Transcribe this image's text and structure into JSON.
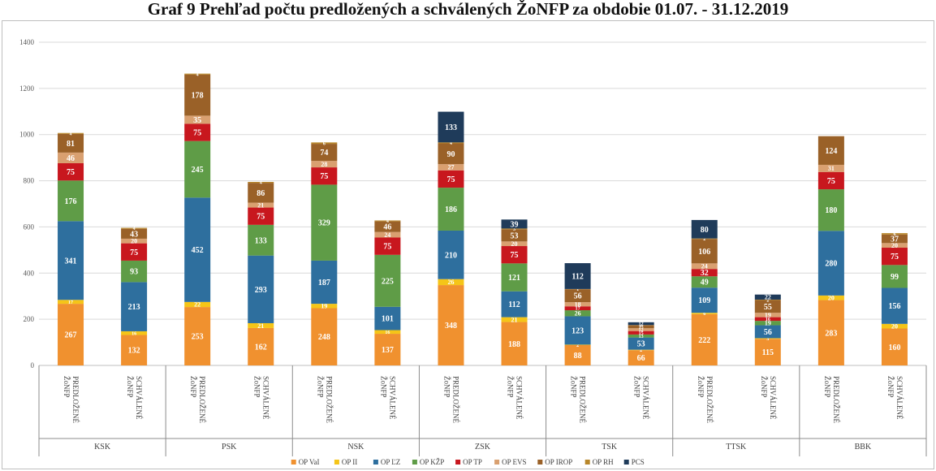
{
  "page": {
    "title": "Graf 9 Prehľad počtu predložených a schválených ŽoNFP za obdobie 01.07. - 31.12.2019"
  },
  "colors": {
    "OP VaI": "#f0912f",
    "OP II": "#f5c518",
    "OP ĽZ": "#2e6f9e",
    "OP KŽP": "#5f9c47",
    "OP TP": "#c8171e",
    "OP EVS": "#d9a070",
    "OP IROP": "#9a6128",
    "OP RH": "#b8872a",
    "PCS": "#1f3b5a"
  },
  "chart_data": {
    "type": "bar",
    "stacked": true,
    "title": "Graf 9 Prehľad počtu predložených a schválených ŽoNFP za obdobie 01.07. - 31.12.2019",
    "ylim": [
      0,
      1400
    ],
    "yticks": [
      0,
      200,
      400,
      600,
      800,
      1000,
      1200,
      1400
    ],
    "grid": true,
    "legend_position": "bottom",
    "groups": [
      "KSK",
      "PSK",
      "NSK",
      "ZSK",
      "TSK",
      "TTSK",
      "BBK"
    ],
    "subcategories": [
      "PREDLOŽENÉ ŽoNFP",
      "SCHVÁLENÉ ŽoNFP"
    ],
    "series_names": [
      "OP VaI",
      "OP II",
      "OP ĽZ",
      "OP KŽP",
      "OP TP",
      "OP EVS",
      "OP IROP",
      "OP RH",
      "PCS"
    ],
    "bars": [
      {
        "group": "KSK",
        "sub": "PREDLOŽENÉ ŽoNFP",
        "values": [
          267,
          17,
          341,
          176,
          75,
          46,
          81,
          4,
          0
        ]
      },
      {
        "group": "KSK",
        "sub": "SCHVÁLENÉ ŽoNFP",
        "values": [
          132,
          16,
          213,
          93,
          75,
          20,
          43,
          4,
          0
        ]
      },
      {
        "group": "PSK",
        "sub": "PREDLOŽENÉ ŽoNFP",
        "values": [
          253,
          22,
          452,
          245,
          75,
          35,
          178,
          4,
          0
        ]
      },
      {
        "group": "PSK",
        "sub": "SCHVÁLENÉ ŽoNFP",
        "values": [
          162,
          21,
          293,
          133,
          75,
          21,
          86,
          4,
          0
        ]
      },
      {
        "group": "NSK",
        "sub": "PREDLOŽENÉ ŽoNFP",
        "values": [
          248,
          19,
          187,
          329,
          75,
          28,
          74,
          6,
          0
        ]
      },
      {
        "group": "NSK",
        "sub": "SCHVÁLENÉ ŽoNFP",
        "values": [
          137,
          16,
          101,
          225,
          75,
          24,
          46,
          4,
          0
        ]
      },
      {
        "group": "ZSK",
        "sub": "PREDLOŽENÉ ŽoNFP",
        "values": [
          348,
          26,
          210,
          186,
          75,
          27,
          90,
          4,
          133
        ]
      },
      {
        "group": "ZSK",
        "sub": "SCHVÁLENÉ ŽoNFP",
        "values": [
          188,
          21,
          112,
          121,
          75,
          20,
          53,
          3,
          39
        ]
      },
      {
        "group": "TSK",
        "sub": "PREDLOŽENÉ ŽoNFP",
        "values": [
          88,
          2,
          123,
          26,
          17,
          18,
          56,
          1,
          112
        ]
      },
      {
        "group": "TSK",
        "sub": "SCHVÁLENÉ ŽoNFP",
        "values": [
          66,
          2,
          53,
          13,
          15,
          12,
          13,
          1,
          12
        ]
      },
      {
        "group": "TTSK",
        "sub": "PREDLOŽENÉ ŽoNFP",
        "values": [
          222,
          6,
          109,
          49,
          32,
          24,
          106,
          2,
          80
        ]
      },
      {
        "group": "TTSK",
        "sub": "SCHVÁLENÉ ŽoNFP",
        "values": [
          115,
          3,
          56,
          19,
          16,
          19,
          55,
          2,
          22
        ]
      },
      {
        "group": "BBK",
        "sub": "PREDLOŽENÉ ŽoNFP",
        "values": [
          283,
          20,
          280,
          180,
          75,
          31,
          124,
          0,
          0
        ]
      },
      {
        "group": "BBK",
        "sub": "SCHVÁLENÉ ŽoNFP",
        "values": [
          160,
          20,
          156,
          99,
          75,
          20,
          37,
          6,
          0
        ]
      }
    ]
  }
}
